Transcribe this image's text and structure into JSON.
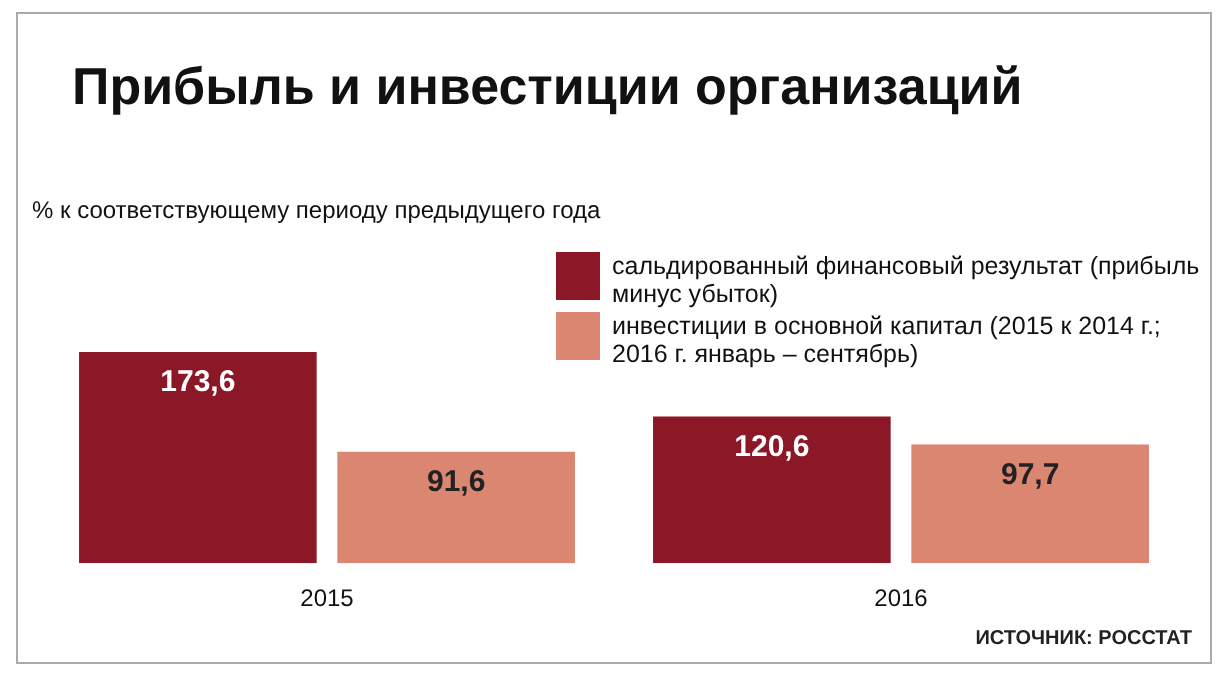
{
  "chart_data": {
    "type": "bar",
    "title": "Прибыль и инвестиции организаций",
    "subtitle": "% к соответствующему периоду предыдущего года",
    "categories": [
      "2015",
      "2016"
    ],
    "series": [
      {
        "name": "сальдированный финансовый результат (прибыль минус убыток)",
        "color": "#8c1727",
        "values": [
          173.6,
          120.6
        ],
        "value_labels": [
          "173,6",
          "120,6"
        ]
      },
      {
        "name": "инвестиции в основной капитал (2015 к 2014 г.; 2016 г. январь – сентябрь)",
        "color": "#db8670",
        "values": [
          91.6,
          97.7
        ],
        "value_labels": [
          "91,6",
          "97,7"
        ]
      }
    ],
    "legend": "top right",
    "annotations": [
      "ИСТОЧНИК: РОССТАТ"
    ]
  }
}
